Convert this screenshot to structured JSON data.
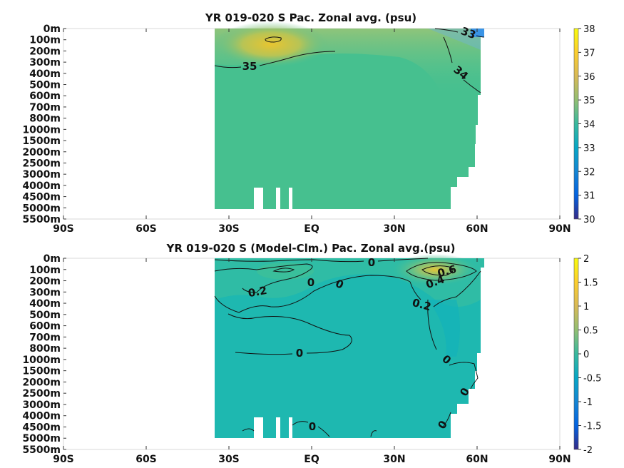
{
  "chart_data": [
    {
      "type": "heatmap",
      "title": "YR 019-020 S Pac. Zonal avg. (psu)",
      "x_ticks": [
        "90S",
        "60S",
        "30S",
        "EQ",
        "30N",
        "60N",
        "90N"
      ],
      "x_values": [
        -90,
        -60,
        -30,
        0,
        30,
        60,
        90
      ],
      "y_ticks": [
        "0m",
        "100m",
        "200m",
        "300m",
        "400m",
        "500m",
        "600m",
        "700m",
        "800m",
        "1000m",
        "1500m",
        "2000m",
        "2500m",
        "3000m",
        "4000m",
        "4500m",
        "5000m",
        "5500m"
      ],
      "y_scale": "nonuniform (level index)",
      "data_extent_lat": [
        -35,
        62
      ],
      "colorbar": {
        "min": 30,
        "max": 38,
        "ticks": [
          "30",
          "31",
          "32",
          "33",
          "34",
          "35",
          "36",
          "37",
          "38"
        ]
      },
      "contour_labels": [
        "33",
        "34",
        "35"
      ],
      "colormap": "parula"
    },
    {
      "type": "heatmap",
      "title": "YR 019-020 S (Model-Clm.) Pac. Zonal avg.(psu)",
      "x_ticks": [
        "90S",
        "60S",
        "30S",
        "EQ",
        "30N",
        "60N",
        "90N"
      ],
      "x_values": [
        -90,
        -60,
        -30,
        0,
        30,
        60,
        90
      ],
      "y_ticks": [
        "0m",
        "100m",
        "200m",
        "300m",
        "400m",
        "500m",
        "600m",
        "700m",
        "800m",
        "1000m",
        "1500m",
        "2000m",
        "2500m",
        "3000m",
        "4000m",
        "4500m",
        "5000m",
        "5500m"
      ],
      "y_scale": "nonuniform (level index)",
      "data_extent_lat": [
        -35,
        62
      ],
      "colorbar": {
        "min": -2,
        "max": 2,
        "ticks": [
          "-2",
          "-1.5",
          "-1",
          "-0.5",
          "0",
          "0.5",
          "1",
          "1.5",
          "2"
        ]
      },
      "contour_labels": [
        "0",
        "0",
        "0",
        "0",
        "0",
        "0",
        "0",
        "0",
        "0.2",
        "0.2",
        "0.4",
        "0.6"
      ],
      "colormap": "parula"
    }
  ]
}
